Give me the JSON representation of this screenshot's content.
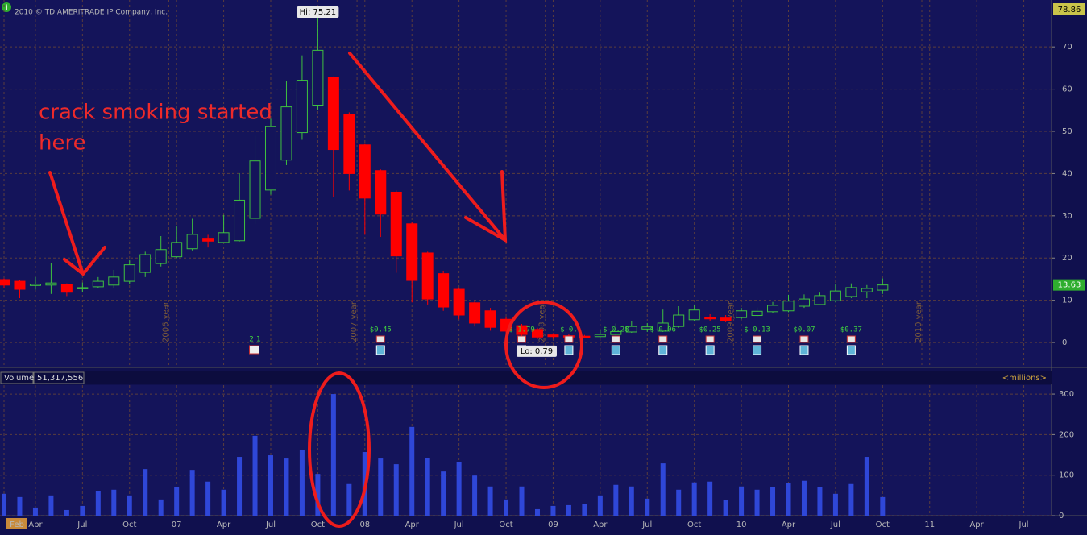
{
  "header": {
    "copyright": "2010 © TD AMERITRADE IP Company, Inc.",
    "top_price": 78.86,
    "last_price": 13.63,
    "hi_label": "Hi: 75.21",
    "lo_label": "Lo: 0.79",
    "annotation": [
      "crack smoking started",
      "here"
    ],
    "year_labels": [
      "2006 year",
      "2007 year",
      "2008 year",
      "2009 year",
      "2010 year"
    ],
    "volume_title": "Volume",
    "volume_readout": "51,317,556",
    "volume_units": "<millions>"
  },
  "chart_data": [
    {
      "type": "candlestick",
      "open": [
        14.9,
        14.5,
        13.5,
        13.6,
        13.8,
        12.8,
        13.2,
        13.6,
        14.5,
        16.6,
        18.7,
        20.3,
        22.2,
        24.5,
        23.7,
        24.1,
        29.4,
        36.1,
        43.2,
        49.7,
        56.2,
        62.7,
        54.1,
        46.8,
        40.7,
        35.6,
        28.1,
        21.2,
        16.3,
        12.6,
        9.4,
        7.5,
        5.5,
        4.0,
        3.1,
        1.8,
        1.6,
        1.5,
        1.4,
        1.9,
        2.5,
        3.2,
        2.7,
        3.8,
        5.4,
        5.9,
        5.8,
        5.9,
        6.4,
        7.3,
        7.5,
        8.6,
        9.0,
        9.9,
        10.9,
        12.0,
        12.4,
        null,
        null,
        null,
        null,
        null,
        null,
        null,
        null,
        null
      ],
      "high": [
        15.2,
        14.8,
        15.5,
        18.9,
        14.0,
        14.2,
        15.5,
        17.2,
        19.5,
        21.5,
        25.2,
        27.5,
        29.3,
        25.5,
        30.2,
        40.1,
        49,
        53,
        62,
        68,
        75.21,
        63,
        54.5,
        47,
        41,
        36,
        28.5,
        21.5,
        17.0,
        13.0,
        10,
        8.2,
        6,
        4.4,
        3.5,
        2.2,
        2,
        1.8,
        3,
        4.5,
        5,
        4.6,
        7.8,
        8.6,
        9,
        6.7,
        6.5,
        8.2,
        8.3,
        9.6,
        11.3,
        11.4,
        11.8,
        13.9,
        14,
        13.6,
        15.2,
        null,
        null,
        null,
        null,
        null,
        null,
        null,
        null,
        null
      ],
      "low": [
        13.0,
        10.5,
        12.5,
        11.5,
        11.0,
        12.0,
        12.8,
        13.0,
        13.8,
        15.5,
        18.0,
        20,
        21.8,
        22.5,
        23.5,
        23.9,
        28,
        35,
        42,
        48,
        55,
        34.5,
        36,
        25.5,
        25,
        16.5,
        9.5,
        9.0,
        7.5,
        5.5,
        3.8,
        2.8,
        1.8,
        1.2,
        0.79,
        0.9,
        1.0,
        1.0,
        1.2,
        1.7,
        2.3,
        2.5,
        2.5,
        3.5,
        5,
        5,
        4.8,
        5.5,
        6,
        7,
        7.2,
        8.2,
        8.8,
        9.5,
        10.5,
        10.5,
        11.5,
        null,
        null,
        null,
        null,
        null,
        null,
        null,
        null,
        null
      ],
      "close": [
        13.6,
        12.6,
        13.8,
        14.1,
        11.9,
        13.0,
        14.5,
        15.5,
        18.4,
        20.8,
        22.0,
        23.7,
        25.6,
        24.0,
        26,
        33.7,
        43.0,
        51.1,
        55.8,
        62.1,
        69.2,
        45.7,
        40,
        34.2,
        30.4,
        20.5,
        14.7,
        10.3,
        8.4,
        6.5,
        4.6,
        3.6,
        2.7,
        1.9,
        1.3,
        1.4,
        1.3,
        1.2,
        1.9,
        2.6,
        3.8,
        3.7,
        4.6,
        6.5,
        7.7,
        5.6,
        5.2,
        7.5,
        7.4,
        8.8,
        9.8,
        10.3,
        11.1,
        12.2,
        13.0,
        12.8,
        13.63,
        null,
        null,
        null,
        null,
        null,
        null,
        null,
        null,
        null
      ],
      "up_color": "#3fc23f",
      "down_color": "#ff0000",
      "earnings": [
        null,
        null,
        null,
        null,
        null,
        null,
        null,
        null,
        null,
        null,
        null,
        null,
        null,
        null,
        null,
        null,
        null,
        null,
        null,
        null,
        null,
        null,
        null,
        null,
        "$0.45",
        null,
        null,
        null,
        null,
        null,
        null,
        null,
        null,
        "$-1.79",
        null,
        null,
        "$-0.",
        null,
        null,
        "$-0.28",
        null,
        null,
        "$-0.06",
        null,
        null,
        "$0.25",
        null,
        null,
        "$-0.13",
        null,
        null,
        "$0.07",
        null,
        null,
        "$0.37",
        null,
        null,
        null,
        null,
        null,
        null,
        null,
        null,
        null,
        null,
        null
      ],
      "splits": [
        null,
        null,
        null,
        null,
        null,
        null,
        null,
        null,
        null,
        null,
        null,
        null,
        null,
        null,
        null,
        null,
        "2:1",
        null,
        null,
        null,
        null,
        null,
        null,
        null,
        null,
        null,
        null,
        null,
        null,
        null,
        null,
        null,
        null,
        null,
        null,
        null,
        null,
        null,
        null,
        null,
        null,
        null,
        null,
        null,
        null,
        null,
        null,
        null,
        null,
        null,
        null,
        null,
        null,
        null,
        null,
        null,
        null,
        null,
        null,
        null,
        null,
        null,
        null,
        null,
        null,
        null
      ],
      "ylim": [
        -5.9,
        81.1
      ],
      "yticks": [
        0,
        10,
        20,
        30,
        40,
        50,
        60,
        70
      ],
      "grid": true
    },
    {
      "type": "bar",
      "categories": [
        "Feb",
        null,
        "Apr",
        null,
        null,
        "Jul",
        null,
        null,
        "Oct",
        null,
        null,
        "07",
        null,
        null,
        "Apr",
        null,
        null,
        "Jul",
        null,
        null,
        "Oct",
        null,
        null,
        "08",
        null,
        null,
        "Apr",
        null,
        null,
        "Jul",
        null,
        null,
        "Oct",
        null,
        null,
        "09",
        null,
        null,
        "Apr",
        null,
        null,
        "Jul",
        null,
        null,
        "Oct",
        null,
        null,
        "10",
        null,
        null,
        "Apr",
        null,
        null,
        "Jul",
        null,
        null,
        "Oct",
        null,
        null,
        "11",
        null,
        null,
        "Apr",
        null,
        null,
        "Jul"
      ],
      "values": [
        54,
        46,
        20,
        50,
        14,
        24,
        60,
        64,
        50,
        115,
        40,
        70,
        113,
        84,
        64,
        145,
        197,
        149,
        141,
        163,
        103,
        300,
        78,
        157,
        141,
        127,
        219,
        143,
        109,
        133,
        99,
        72,
        40,
        72,
        16,
        24,
        26,
        28,
        50,
        76,
        72,
        42,
        129,
        64,
        82,
        84,
        38,
        72,
        64,
        70,
        80,
        86,
        70,
        54,
        78,
        145,
        46,
        null,
        null,
        null,
        null,
        null,
        null,
        null,
        null,
        null
      ],
      "color": "#2f47d8",
      "ylim": [
        0,
        322
      ],
      "yticks": [
        0,
        100,
        200,
        300
      ],
      "grid": true
    }
  ]
}
